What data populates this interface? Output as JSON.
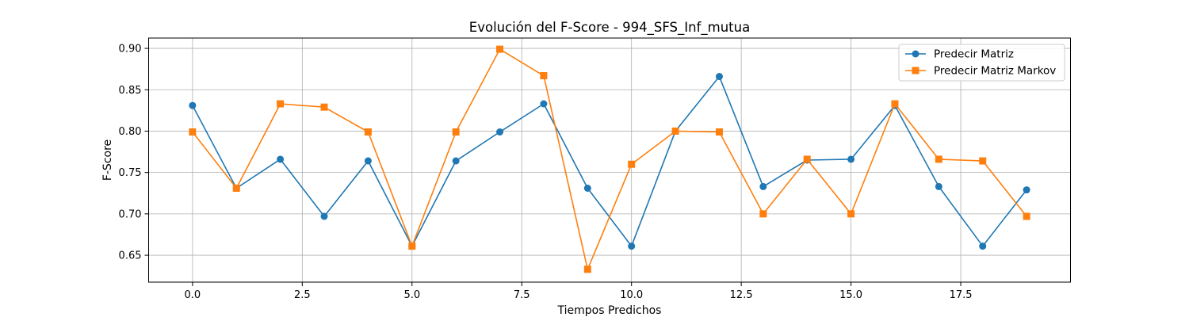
{
  "chart_data": {
    "type": "line",
    "title": "Evolución del F-Score - 994_SFS_Inf_mutua",
    "xlabel": "Tiempos Predichos",
    "ylabel": "F-Score",
    "x": [
      0,
      1,
      2,
      3,
      4,
      5,
      6,
      7,
      8,
      9,
      10,
      11,
      12,
      13,
      14,
      15,
      16,
      17,
      18,
      19
    ],
    "xlim": [
      -1.0,
      20.0
    ],
    "ylim": [
      0.6175,
      0.9125
    ],
    "xticks": [
      "0.0",
      "2.5",
      "5.0",
      "7.5",
      "10.0",
      "12.5",
      "15.0",
      "17.5"
    ],
    "yticks": [
      "0.65",
      "0.70",
      "0.75",
      "0.80",
      "0.85",
      "0.90"
    ],
    "grid": true,
    "legend_position": "top-right",
    "series": [
      {
        "name": "Predecir Matriz",
        "color": "#1f77b4",
        "marker": "circle",
        "values": [
          0.831,
          0.731,
          0.766,
          0.697,
          0.764,
          0.661,
          0.764,
          0.799,
          0.833,
          0.731,
          0.661,
          0.8,
          0.866,
          0.733,
          0.765,
          0.766,
          0.831,
          0.733,
          0.661,
          0.729
        ]
      },
      {
        "name": "Predecir Matriz Markov",
        "color": "#ff7f0e",
        "marker": "square",
        "values": [
          0.799,
          0.731,
          0.833,
          0.829,
          0.799,
          0.661,
          0.799,
          0.899,
          0.867,
          0.633,
          0.76,
          0.8,
          0.799,
          0.7,
          0.766,
          0.7,
          0.833,
          0.766,
          0.764,
          0.697
        ]
      }
    ]
  }
}
